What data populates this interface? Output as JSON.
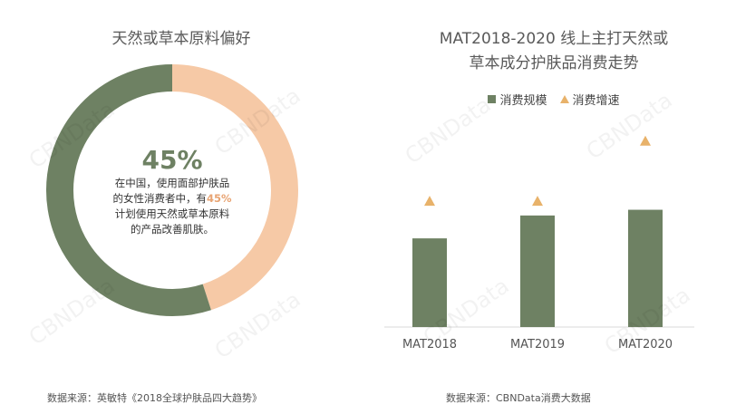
{
  "chart_data": [
    {
      "type": "pie",
      "title": "天然或草本原料偏好",
      "slices": [
        {
          "label": "",
          "value": 45,
          "color": "#f6c9a6"
        },
        {
          "label": "",
          "value": 55,
          "color": "#6e8163"
        }
      ],
      "center": {
        "value_text": "45%",
        "line1": "在中国，使用面部护肤品",
        "line2_pre": "的女性消费者中，有",
        "line2_hl": "45%",
        "line3": "计划使用天然或草本原料",
        "line4": "的产品改善肌肤。"
      },
      "source": "数据来源：英敏特《2018全球护肤品四大趋势》"
    },
    {
      "type": "bar",
      "title_line1": "MAT2018-2020 线上主打天然或",
      "title_line2": "草本成分护肤品消费走势",
      "categories": [
        "MAT2018",
        "MAT2019",
        "MAT2020"
      ],
      "series": [
        {
          "name": "消费规模",
          "values": [
            3.1,
            3.9,
            4.1
          ],
          "color": "#6e8163",
          "mark": "bar"
        },
        {
          "name": "消费增速",
          "values": [
            4.4,
            4.4,
            6.5
          ],
          "color": "#e8b26a",
          "mark": "triangle"
        }
      ],
      "ylim": [
        0,
        7
      ],
      "legend_position": "top",
      "grid": false,
      "source": "数据来源：CBNData消费大数据"
    }
  ],
  "watermark": "CBNData"
}
